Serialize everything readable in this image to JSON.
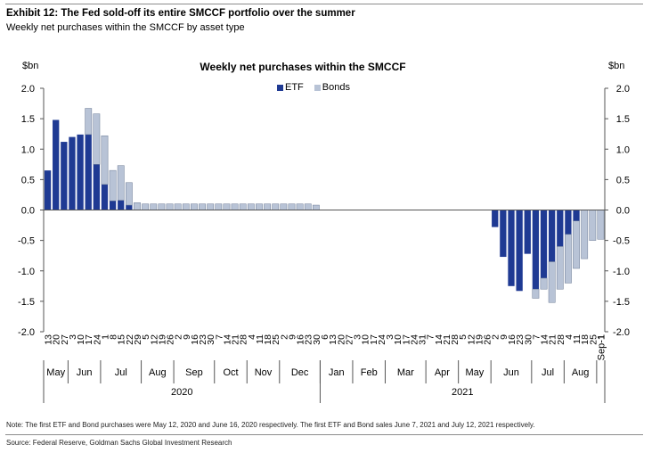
{
  "header": {
    "exhibit_title": "Exhibit 12: The Fed sold-off its entire SMCCF portfolio over the summer",
    "exhibit_subtitle": "Weekly net purchases within the SMCCF by asset type"
  },
  "footer": {
    "note": "Note: The first ETF and Bond purchases were May 12, 2020 and June 16, 2020 respectively. The first ETF and Bond sales June 7, 2021 and July 12, 2021 respectively.",
    "source": "Source: Federal Reserve, Goldman Sachs Global Investment Research"
  },
  "chart_data": {
    "type": "bar",
    "stacked": true,
    "title": "Weekly net purchases within the SMCCF",
    "ylabel_left": "$bn",
    "ylabel_right": "$bn",
    "ylim": [
      -2.0,
      2.0
    ],
    "yticks": [
      "2.0",
      "1.5",
      "1.0",
      "0.5",
      "0.0",
      "-0.5",
      "-1.0",
      "-1.5",
      "-2.0"
    ],
    "legend_position": "top-center",
    "colors": {
      "ETF": "#1f3a93",
      "Bonds": "#b8c3d6"
    },
    "categories": [
      "13",
      "20",
      "27",
      "3",
      "10",
      "17",
      "24",
      "1",
      "8",
      "15",
      "22",
      "29",
      "5",
      "12",
      "19",
      "26",
      "2",
      "9",
      "16",
      "23",
      "30",
      "7",
      "14",
      "21",
      "28",
      "4",
      "11",
      "18",
      "25",
      "2",
      "9",
      "16",
      "23",
      "30",
      "6",
      "13",
      "20",
      "27",
      "3",
      "10",
      "17",
      "24",
      "3",
      "10",
      "17",
      "24",
      "31",
      "7",
      "14",
      "21",
      "28",
      "5",
      "12",
      "19",
      "26",
      "2",
      "9",
      "16",
      "23",
      "30",
      "7",
      "14",
      "21",
      "28",
      "4",
      "11",
      "18",
      "25",
      "1"
    ],
    "months": [
      {
        "label": "May",
        "first": 0,
        "last": 2
      },
      {
        "label": "Jun",
        "first": 3,
        "last": 6
      },
      {
        "label": "Jul",
        "first": 7,
        "last": 11
      },
      {
        "label": "Aug",
        "first": 12,
        "last": 15
      },
      {
        "label": "Sep",
        "first": 16,
        "last": 20
      },
      {
        "label": "Oct",
        "first": 21,
        "last": 24
      },
      {
        "label": "Nov",
        "first": 25,
        "last": 28
      },
      {
        "label": "Dec",
        "first": 29,
        "last": 33
      },
      {
        "label": "Jan",
        "first": 34,
        "last": 37
      },
      {
        "label": "Feb",
        "first": 38,
        "last": 41
      },
      {
        "label": "Mar",
        "first": 42,
        "last": 46
      },
      {
        "label": "Apr",
        "first": 47,
        "last": 50
      },
      {
        "label": "May",
        "first": 51,
        "last": 54
      },
      {
        "label": "Jun",
        "first": 55,
        "last": 59
      },
      {
        "label": "Jul",
        "first": 60,
        "last": 63
      },
      {
        "label": "Aug",
        "first": 64,
        "last": 67
      },
      {
        "label": "Sep-1",
        "first": 68,
        "last": 68
      }
    ],
    "years": [
      {
        "label": "2020",
        "first": 0,
        "last": 33
      },
      {
        "label": "2021",
        "first": 34,
        "last": 68
      }
    ],
    "series": [
      {
        "name": "ETF",
        "values": [
          0.65,
          1.48,
          1.12,
          1.2,
          1.24,
          1.24,
          0.75,
          0.42,
          0.15,
          0.16,
          0.08,
          0,
          0,
          0,
          0,
          0,
          0,
          0,
          0,
          0,
          0,
          0,
          0,
          0,
          0,
          0,
          0,
          0,
          0,
          0,
          0,
          0,
          0,
          0,
          0,
          0,
          0,
          0,
          0,
          0,
          0,
          0,
          0,
          0,
          0,
          0,
          0,
          0,
          0,
          0,
          0,
          0,
          0,
          0,
          0,
          -0.28,
          -0.77,
          -1.25,
          -1.33,
          -0.72,
          -1.3,
          -1.12,
          -0.85,
          -0.6,
          -0.4,
          -0.18,
          0,
          0,
          0
        ]
      },
      {
        "name": "Bonds",
        "values": [
          0,
          0,
          0,
          0,
          0,
          0.43,
          0.83,
          0.8,
          0.5,
          0.57,
          0.37,
          0.12,
          0.1,
          0.1,
          0.1,
          0.1,
          0.1,
          0.1,
          0.1,
          0.1,
          0.1,
          0.1,
          0.1,
          0.1,
          0.1,
          0.1,
          0.1,
          0.1,
          0.1,
          0.1,
          0.1,
          0.1,
          0.1,
          0.08,
          0,
          0,
          0,
          0,
          0,
          0,
          0,
          0,
          0,
          0,
          0,
          0,
          0,
          0,
          0,
          0,
          0,
          0,
          0,
          0,
          0,
          0,
          0,
          0,
          0,
          0,
          -0.15,
          -0.18,
          -0.67,
          -0.7,
          -0.8,
          -0.78,
          -0.8,
          -0.5,
          -0.48
        ]
      }
    ]
  }
}
